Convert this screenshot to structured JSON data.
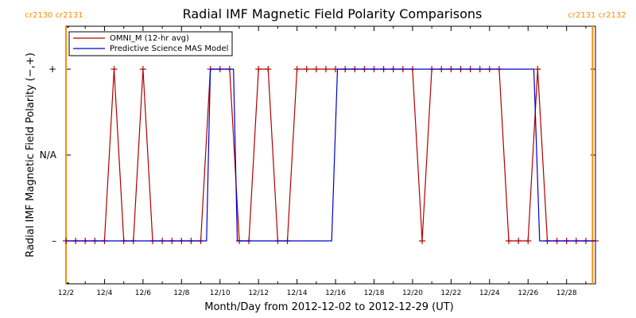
{
  "chart_data": {
    "type": "line",
    "title": "Radial IMF Magnetic Field Polarity Comparisons",
    "xlabel": "Month/Day from 2012-12-02 to 2012-12-29 (UT)",
    "ylabel": "Radial IMF Magnetic Field Polarity (−,+)",
    "x_unit": "day of December 2012",
    "xlim": [
      2.0,
      29.5
    ],
    "ylim": [
      -1.5,
      1.5
    ],
    "x_ticks": [
      2,
      4,
      6,
      8,
      10,
      12,
      14,
      16,
      18,
      20,
      22,
      24,
      26,
      28
    ],
    "x_tick_labels": [
      "12/2",
      "12/4",
      "12/6",
      "12/8",
      "12/10",
      "12/12",
      "12/14",
      "12/16",
      "12/18",
      "12/20",
      "12/22",
      "12/24",
      "12/26",
      "12/28"
    ],
    "y_ticks": [
      1,
      0,
      -1
    ],
    "y_tick_labels": [
      "+",
      "N/A",
      "–"
    ],
    "carrington_markers": [
      {
        "x": 2.0,
        "label": "cr2130 cr2131"
      },
      {
        "x": 29.35,
        "label": "cr2131 cr2132"
      }
    ],
    "legend": {
      "position": "top-left"
    },
    "series": [
      {
        "name": "OMNI_M (12-hr avg)",
        "color": "#b00000",
        "markers": "plus",
        "x": [
          2.0,
          2.5,
          3.0,
          3.5,
          4.0,
          4.5,
          5.0,
          5.5,
          6.0,
          6.5,
          7.0,
          7.5,
          8.0,
          8.5,
          9.0,
          9.5,
          10.0,
          10.5,
          11.0,
          11.5,
          12.0,
          12.5,
          13.0,
          13.5,
          14.0,
          14.5,
          15.0,
          15.5,
          16.0,
          16.5,
          17.0,
          17.5,
          18.0,
          18.5,
          19.0,
          19.5,
          20.0,
          20.5,
          21.0,
          21.5,
          22.0,
          22.5,
          23.0,
          23.5,
          24.0,
          24.5,
          25.0,
          25.5,
          26.0,
          26.5,
          27.0,
          27.5,
          28.0,
          28.5,
          29.0,
          29.5
        ],
        "values": [
          -1,
          -1,
          -1,
          -1,
          -1,
          1,
          -1,
          -1,
          1,
          -1,
          -1,
          -1,
          -1,
          -1,
          -1,
          1,
          1,
          1,
          -1,
          -1,
          1,
          1,
          -1,
          -1,
          1,
          1,
          1,
          1,
          1,
          1,
          1,
          1,
          1,
          1,
          1,
          1,
          1,
          -1,
          1,
          1,
          1,
          1,
          1,
          1,
          1,
          1,
          -1,
          -1,
          -1,
          1,
          -1,
          -1,
          -1,
          -1,
          -1,
          -1
        ]
      },
      {
        "name": "Predictive Science MAS Model",
        "color": "#0000cc",
        "markers": "none",
        "x": [
          2.0,
          9.3,
          9.5,
          10.7,
          10.9,
          15.8,
          16.1,
          26.3,
          26.6,
          29.5
        ],
        "values": [
          -1,
          -1,
          1,
          1,
          -1,
          -1,
          1,
          1,
          -1,
          -1
        ]
      }
    ]
  }
}
